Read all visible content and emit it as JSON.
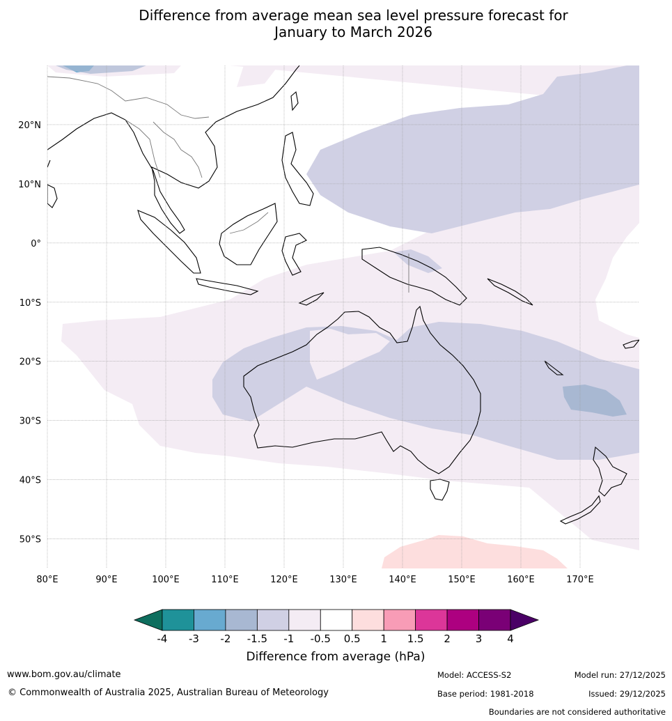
{
  "title": {
    "line1": "Difference from average mean sea level pressure forecast for",
    "line2": "January to March 2026"
  },
  "map": {
    "lat_labels": [
      "20°N",
      "10°N",
      "0°",
      "10°S",
      "20°S",
      "30°S",
      "40°S",
      "50°S"
    ],
    "lon_labels": [
      "80°E",
      "90°E",
      "100°E",
      "110°E",
      "120°E",
      "130°E",
      "140°E",
      "150°E",
      "160°E",
      "170°E"
    ],
    "extent": {
      "lon_min": 80,
      "lon_max": 180,
      "lat_min": -55,
      "lat_max": 30
    }
  },
  "legend": {
    "title": "Difference from average (hPa)",
    "tick_labels": [
      "-4",
      "-3",
      "-2",
      "-1.5",
      "-1",
      "-0.5",
      "0.5",
      "1",
      "1.5",
      "2",
      "3",
      "4"
    ],
    "colors": [
      "#0e6e5e",
      "#1f9299",
      "#68aad0",
      "#a8b8d2",
      "#d0d0e4",
      "#f4ecf4",
      "#ffffff",
      "#fddede",
      "#f89cb6",
      "#dc3699",
      "#ad0080",
      "#7a0076",
      "#4a0066"
    ]
  },
  "footer": {
    "website": "www.bom.gov.au/climate",
    "copyright": "© Commonwealth of Australia 2025, Australian Bureau of Meteorology",
    "model": "Model: ACCESS-S2",
    "base_period": "Base period: 1981-2018",
    "model_run": "Model run: 27/12/2025",
    "issued": "Issued: 29/12/2025",
    "boundaries": "Boundaries are not considered authoritative"
  }
}
